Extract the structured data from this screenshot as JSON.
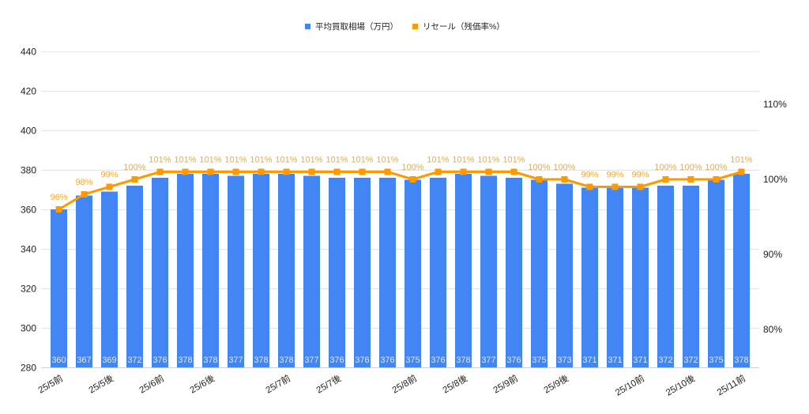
{
  "legend": {
    "items": [
      {
        "label": "平均買取相場（万円）",
        "color": "#4285F4"
      },
      {
        "label": "リセール（残価率%）",
        "color": "#FF9900"
      }
    ]
  },
  "chart_data": {
    "type": "bar",
    "title": "",
    "xlabel": "",
    "ylabel": "",
    "legend_position": "top",
    "grid": true,
    "x_tick_labels": [
      {
        "index": 0,
        "label": "25/5前"
      },
      {
        "index": 2,
        "label": "25/5後"
      },
      {
        "index": 4,
        "label": "25/6前"
      },
      {
        "index": 6,
        "label": "25/6後"
      },
      {
        "index": 9,
        "label": "25/7前"
      },
      {
        "index": 11,
        "label": "25/7後"
      },
      {
        "index": 14,
        "label": "25/8前"
      },
      {
        "index": 16,
        "label": "25/8後"
      },
      {
        "index": 18,
        "label": "25/9前"
      },
      {
        "index": 20,
        "label": "25/9後"
      },
      {
        "index": 23,
        "label": "25/10前"
      },
      {
        "index": 25,
        "label": "25/10後"
      },
      {
        "index": 27,
        "label": "25/11前"
      }
    ],
    "y_left": {
      "lim": [
        280,
        440
      ],
      "ticks": [
        280,
        300,
        320,
        340,
        360,
        380,
        400,
        420,
        440
      ]
    },
    "y_right": {
      "lim": [
        74.95,
        117.05
      ],
      "ticks": [
        80,
        90,
        100,
        110
      ],
      "tick_labels": [
        "80%",
        "90%",
        "100%",
        "110%"
      ]
    },
    "series": [
      {
        "name": "平均買取相場（万円）",
        "type": "bar",
        "axis": "left",
        "color": "#4285F4",
        "label_color": "#DCE8FD",
        "values": [
          360,
          367,
          369,
          372,
          376,
          378,
          378,
          377,
          378,
          378,
          377,
          376,
          376,
          376,
          375,
          376,
          378,
          377,
          376,
          375,
          373,
          371,
          371,
          371,
          372,
          372,
          375,
          378
        ]
      },
      {
        "name": "リセール（残価率%）",
        "type": "line",
        "axis": "right",
        "color": "#FF9900",
        "label_color": "#F6A935",
        "values": [
          96,
          98,
          99,
          100,
          101,
          101,
          101,
          101,
          101,
          101,
          101,
          101,
          101,
          101,
          100,
          101,
          101,
          101,
          101,
          100,
          100,
          99,
          99,
          99,
          100,
          100,
          100,
          101
        ],
        "labels": [
          "96%",
          "98%",
          "99%",
          "100%",
          "101%",
          "101%",
          "101%",
          "101%",
          "101%",
          "101%",
          "101%",
          "101%",
          "101%",
          "101%",
          "100%",
          "101%",
          "101%",
          "101%",
          "101%",
          "100%",
          "100%",
          "99%",
          "99%",
          "99%",
          "100%",
          "100%",
          "100%",
          "101%"
        ]
      }
    ]
  }
}
